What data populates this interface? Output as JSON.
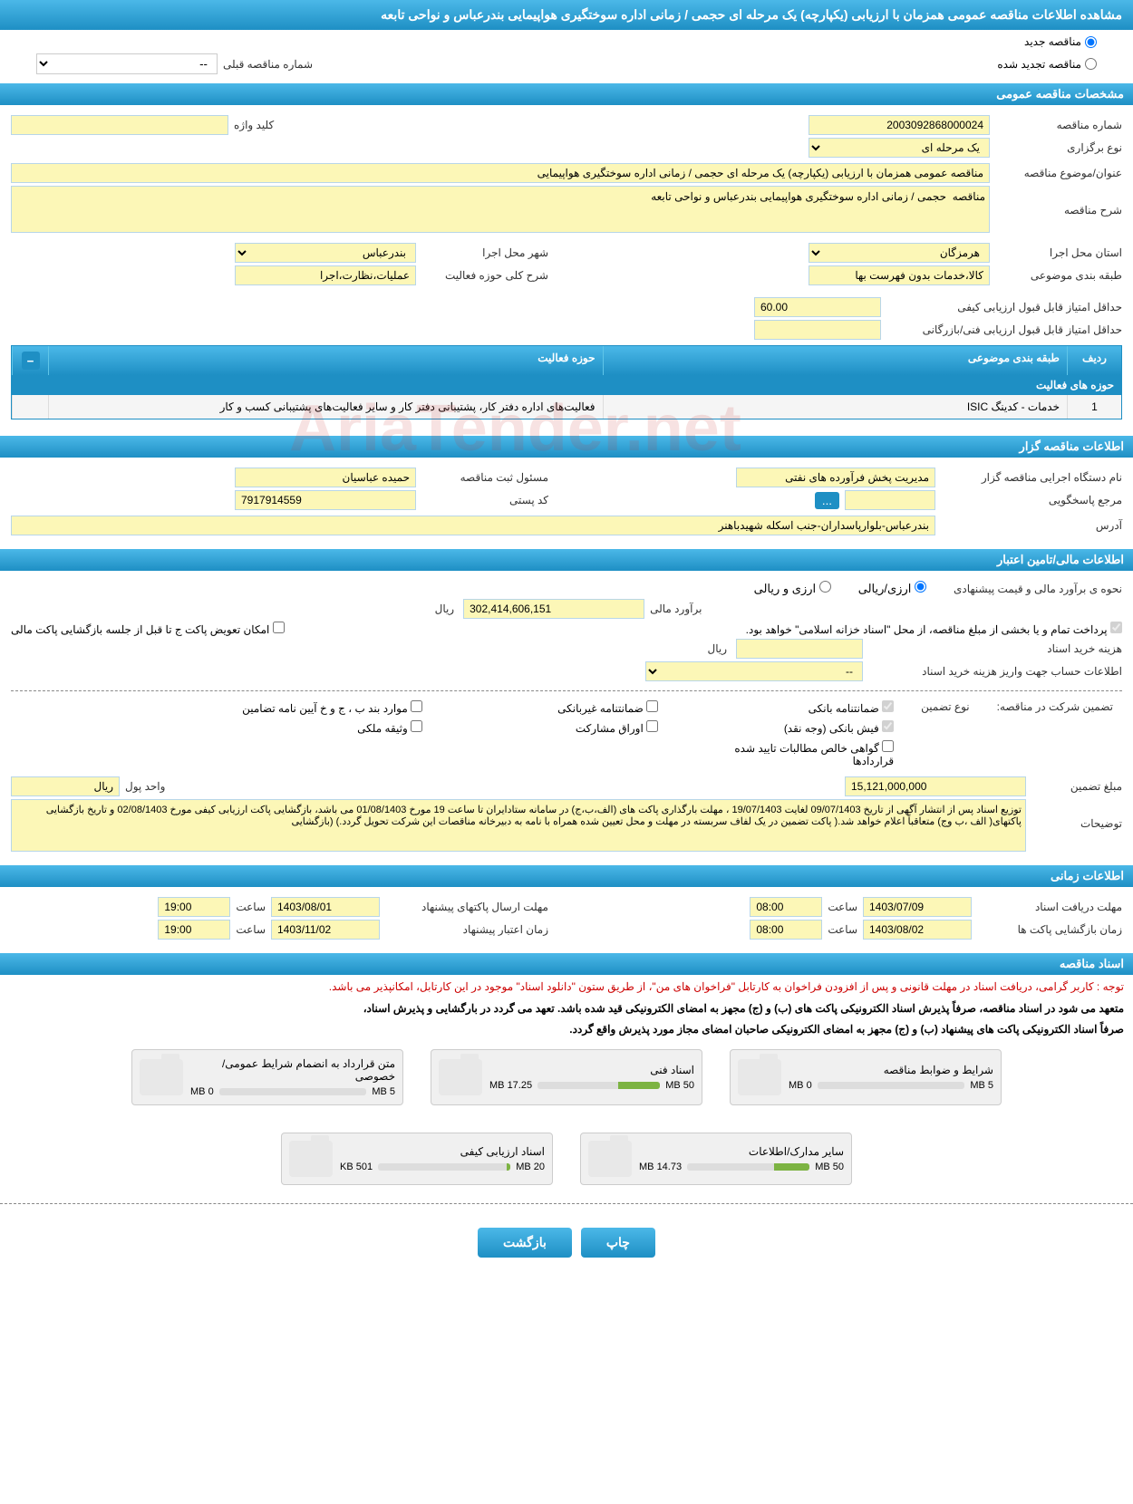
{
  "header": {
    "title": "مشاهده اطلاعات مناقصه عمومی همزمان با ارزیابی (یکپارچه) یک مرحله ای حجمی / زمانی اداره سوختگیری هواپیمایی بندرعباس و نواحی تابعه"
  },
  "tender_type": {
    "new_label": "مناقصه جدید",
    "renew_label": "مناقصه تجدید شده",
    "prev_label": "شماره مناقصه قبلی",
    "prev_value": "--"
  },
  "section_general": {
    "title": "مشخصات مناقصه عمومی"
  },
  "general": {
    "number_label": "شماره مناقصه",
    "number": "2003092868000024",
    "type_label": "نوع برگزاری",
    "type": "یک مرحله ای",
    "keyword_label": "کلید واژه",
    "keyword": "",
    "subject_label": "عنوان/موضوع مناقصه",
    "subject": "مناقصه عمومی همزمان با ارزیابی (یکپارچه) یک مرحله ای  حجمی / زمانی اداره سوختگیری هواپیمایی",
    "desc_label": "شرح مناقصه",
    "desc": "مناقصه  حجمی / زمانی اداره سوختگیری هواپیمایی بندرعباس و نواحی تابعه",
    "province_label": "استان محل اجرا",
    "province": "هرمزگان",
    "city_label": "شهر محل اجرا",
    "city": "بندرعباس",
    "category_label": "طبقه بندی موضوعی",
    "category": "کالا،خدمات بدون فهرست بها",
    "scope_label": "شرح کلی حوزه فعالیت",
    "scope": "عملیات،نظارت،اجرا",
    "min_qual_label": "حداقل امتیاز قابل قبول ارزیابی کیفی",
    "min_qual": "60.00",
    "min_tech_label": "حداقل امتیاز قابل قبول ارزیابی فنی/بازرگانی",
    "min_tech": ""
  },
  "activity_table": {
    "title": "حوزه های فعالیت",
    "col_row": "ردیف",
    "col_cat": "طبقه بندی موضوعی",
    "col_area": "حوزه فعالیت",
    "row_idx": "1",
    "row_cat": "خدمات - کدینگ ISIC",
    "row_area": "فعالیت‌های  اداره دفتر کار، پشتیبانی دفتر کار و سایر فعالیت‌های پشتیبانی کسب و کار"
  },
  "section_org": {
    "title": "اطلاعات مناقصه گزار"
  },
  "org": {
    "exec_label": "نام دستگاه اجرایی مناقصه گزار",
    "exec": "مدیریت پخش فرآورده های نفتی",
    "resp_label": "مسئول ثبت مناقصه",
    "resp": "حمیده عباسیان",
    "ref_label": "مرجع پاسخگویی",
    "ref": "",
    "postal_label": "کد پستی",
    "postal": "7917914559",
    "address_label": "آدرس",
    "address": "بندرعباس-بلوارپاسداران-جنب اسکله شهیدباهنر"
  },
  "section_fin": {
    "title": "اطلاعات مالی/تامین اعتبار"
  },
  "fin": {
    "est_type_label": "نحوه ی برآورد مالی و قیمت پیشنهادی",
    "rial_label": "ارزی/ریالی",
    "fx_label": "ارزی و ریالی",
    "est_label": "برآورد مالی",
    "est_value": "302,414,606,151",
    "unit_rial": "ریال",
    "payment_note": "پرداخت تمام و یا بخشی از مبلغ مناقصه، از محل \"اسناد خزانه اسلامی\" خواهد بود.",
    "swap_label": "امکان تعویض پاکت ج تا قبل از جلسه بازگشایی پاکت مالی",
    "doc_cost_label": "هزینه خرید اسناد",
    "doc_cost": "",
    "account_label": "اطلاعات حساب جهت واریز هزینه خرید اسناد",
    "account": "--"
  },
  "guarantee": {
    "participate_label": "تضمین شرکت در مناقصه:",
    "type_label": "نوع تضمین",
    "bank_g": "ضمانتنامه بانکی",
    "nonbank_g": "ضمانتنامه غیربانکی",
    "bonds": "موارد بند ب ، ج و خ آیین نامه تضامین",
    "receipt": "فیش بانکی (وجه نقد)",
    "securities": "اوراق مشارکت",
    "property": "وثیقه ملکی",
    "confirmed": "گواهی خالص مطالبات تایید شده قراردادها",
    "amount_label": "مبلغ تضمین",
    "amount": "15,121,000,000",
    "unit_label": "واحد پول",
    "unit_val": "ریال",
    "desc_label": "توضیحات",
    "desc": "توزیع اسناد پس از انتشار آگهی از تاریخ 09/07/1403 لغایت 19/07/1403 ، مهلت بارگذاری پاکت های (الف،ب،ج) در سامانه ستادایران تا ساعت 19 مورخ 01/08/1403 می باشد، بازگشایی پاکت ارزیابی کیفی مورخ 02/08/1403 و تاریخ بازگشایی پاکتهای( الف ،ب وج) متعاقباً اعلام خواهد شد.( پاکت تضمین در یک لفاف سربسته در مهلت و محل تعیین شده همراه با نامه به دبیرخانه مناقصات این شرکت تحویل گردد.) (بازگشایی"
  },
  "section_time": {
    "title": "اطلاعات زمانی"
  },
  "time": {
    "doc_deadline_label": "مهلت دریافت اسناد",
    "doc_date": "1403/07/09",
    "time_label": "ساعت",
    "doc_time": "08:00",
    "send_deadline_label": "مهلت ارسال پاکتهای پیشنهاد",
    "send_date": "1403/08/01",
    "send_time": "19:00",
    "open_label": "زمان بازگشایی پاکت ها",
    "open_date": "1403/08/02",
    "open_time": "08:00",
    "validity_label": "زمان اعتبار پیشنهاد",
    "validity_date": "1403/11/02",
    "validity_time": "19:00"
  },
  "section_docs": {
    "title": "اسناد مناقصه"
  },
  "docs_notes": {
    "red": "توجه : کاربر گرامی، دریافت اسناد در مهلت قانونی و پس از افزودن فراخوان به کارتابل \"فراخوان های من\"، از طریق ستون \"دانلود اسناد\" موجود در این کارتابل، امکانپذیر می باشد.",
    "black1": "متعهد می شود در اسناد مناقصه، صرفاً پذیرش اسناد الکترونیکی پاکت های (ب) و (ج) مجهز به امضای الکترونیکی قید شده باشد. تعهد می گردد در بارگشایی و پذیرش اسناد،",
    "black2": "صرفاً اسناد الکترونیکی پاکت های پیشنهاد (ب) و (ج) مجهز به امضای الکترونیکی صاحبان امضای مجاز مورد پذیرش واقع گردد."
  },
  "docs": [
    {
      "title": "شرایط و ضوابط مناقصه",
      "cap": "5 MB",
      "used": "0 MB",
      "pct": 0
    },
    {
      "title": "اسناد فنی",
      "cap": "50 MB",
      "used": "17.25 MB",
      "pct": 34
    },
    {
      "title": "متن قرارداد به انضمام شرایط عمومی/خصوصی",
      "cap": "5 MB",
      "used": "0 MB",
      "pct": 0
    },
    {
      "title": "سایر مدارک/اطلاعات",
      "cap": "50 MB",
      "used": "14.73 MB",
      "pct": 29
    },
    {
      "title": "اسناد ارزیابی کیفی",
      "cap": "20 MB",
      "used": "501 KB",
      "pct": 3
    }
  ],
  "buttons": {
    "print": "چاپ",
    "back": "بازگشت"
  },
  "colors": {
    "header_grad_top": "#4bb8e8",
    "header_grad_bottom": "#1e8fc4",
    "field_bg": "#fcf7b7",
    "field_border": "#b8d6e8",
    "progress_fill": "#7cb342",
    "note_red": "#cc0000"
  }
}
